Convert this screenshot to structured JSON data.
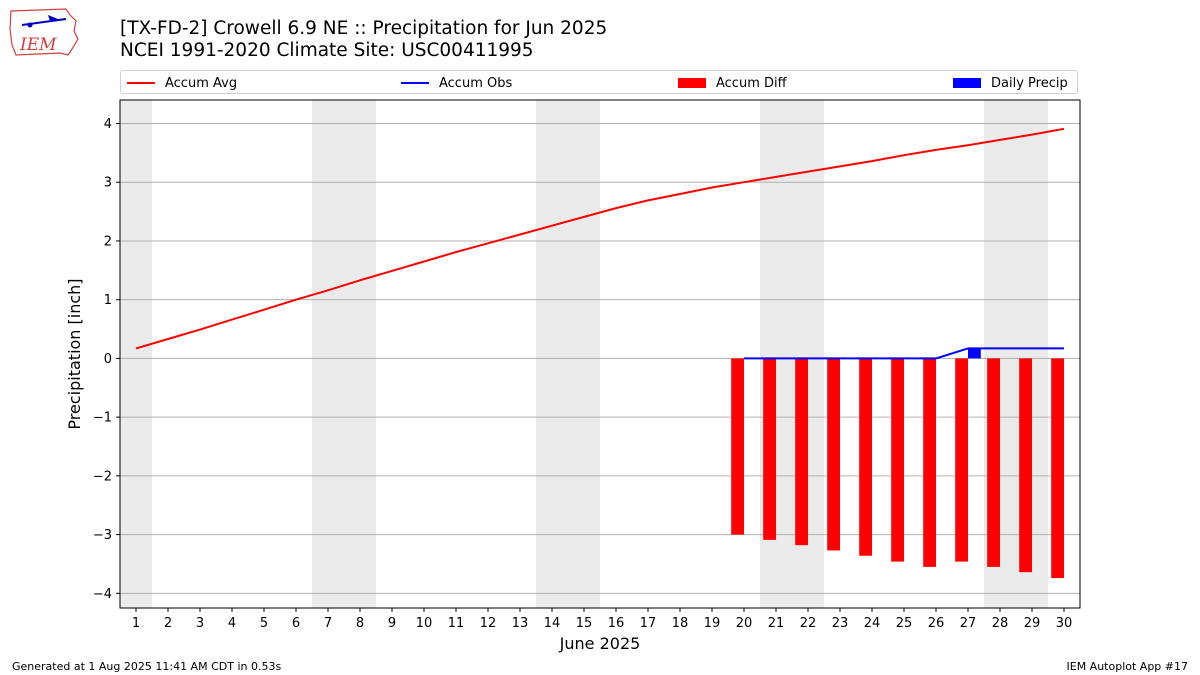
{
  "header": {
    "title_line1": "[TX-FD-2] Crowell 6.9 NE :: Precipitation for Jun 2025",
    "title_line2": "NCEI 1991-2020 Climate Site: USC00411995",
    "logo_text": "IEM"
  },
  "legend": {
    "items": [
      {
        "label": "Accum Avg",
        "kind": "line",
        "color": "#ff0000"
      },
      {
        "label": "Accum Obs",
        "kind": "line",
        "color": "#0000ff"
      },
      {
        "label": "Accum Diff",
        "kind": "box",
        "color": "#ff0000"
      },
      {
        "label": "Daily Precip",
        "kind": "box",
        "color": "#0000ff"
      }
    ]
  },
  "footer": {
    "left": "Generated at 1 Aug 2025 11:41 AM CDT in 0.53s",
    "right": "IEM Autoplot App #17"
  },
  "chart_data": {
    "type": "line",
    "xlabel": "June 2025",
    "ylabel": "Precipitation [inch]",
    "xlim": [
      0.5,
      30.5
    ],
    "ylim": [
      -4.25,
      4.4
    ],
    "x_ticks": [
      1,
      2,
      3,
      4,
      5,
      6,
      7,
      8,
      9,
      10,
      11,
      12,
      13,
      14,
      15,
      16,
      17,
      18,
      19,
      20,
      21,
      22,
      23,
      24,
      25,
      26,
      27,
      28,
      29,
      30
    ],
    "y_ticks": [
      -4,
      -3,
      -2,
      -1,
      0,
      1,
      2,
      3,
      4
    ],
    "y_tick_labels": [
      "−4",
      "−3",
      "−2",
      "−1",
      "0",
      "1",
      "2",
      "3",
      "4"
    ],
    "weekend_days": [
      1,
      7,
      8,
      14,
      15,
      21,
      22,
      28,
      29
    ],
    "grid": "horizontal",
    "legend_position": "top",
    "series": [
      {
        "name": "Accum Avg",
        "type": "line",
        "color": "#ff0000",
        "x": [
          1,
          2,
          3,
          4,
          5,
          6,
          7,
          8,
          9,
          10,
          11,
          12,
          13,
          14,
          15,
          16,
          17,
          18,
          19,
          20,
          21,
          22,
          23,
          24,
          25,
          26,
          27,
          28,
          29,
          30
        ],
        "values": [
          0.17,
          0.33,
          0.49,
          0.66,
          0.83,
          1.0,
          1.16,
          1.33,
          1.49,
          1.65,
          1.81,
          1.96,
          2.11,
          2.26,
          2.41,
          2.56,
          2.69,
          2.8,
          2.91,
          3.0,
          3.09,
          3.18,
          3.27,
          3.36,
          3.46,
          3.55,
          3.63,
          3.72,
          3.81,
          3.91
        ]
      },
      {
        "name": "Accum Obs",
        "type": "line",
        "color": "#0000ff",
        "x": [
          20,
          21,
          22,
          23,
          24,
          25,
          26,
          27,
          28,
          29,
          30
        ],
        "values": [
          0,
          0,
          0,
          0,
          0,
          0,
          0,
          0.17,
          0.17,
          0.17,
          0.17
        ]
      },
      {
        "name": "Accum Diff",
        "type": "bar",
        "color": "#ff0000",
        "x": [
          20,
          21,
          22,
          23,
          24,
          25,
          26,
          27,
          28,
          29,
          30
        ],
        "values": [
          -3.0,
          -3.09,
          -3.18,
          -3.27,
          -3.36,
          -3.46,
          -3.55,
          -3.46,
          -3.55,
          -3.64,
          -3.74
        ]
      },
      {
        "name": "Daily Precip",
        "type": "bar",
        "color": "#0000ff",
        "x": [
          27
        ],
        "values": [
          0.17
        ]
      }
    ]
  }
}
